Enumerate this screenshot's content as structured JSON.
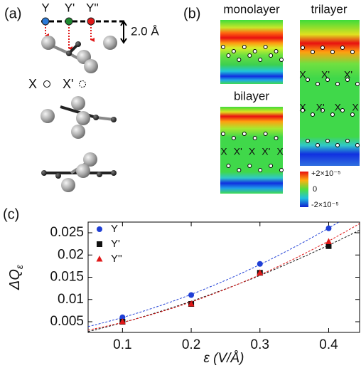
{
  "panel_a": {
    "label": "(a)",
    "sites": [
      "Y",
      "Y'",
      "Y''"
    ],
    "height_label": "2.0 Å",
    "legend": [
      "X",
      "X'"
    ]
  },
  "panel_b": {
    "label": "(b)",
    "maps": [
      {
        "title": "monolayer",
        "x_rows": []
      },
      {
        "title": "bilayer",
        "x_rows": [
          [
            "X",
            "X'",
            "X",
            "X'",
            "X"
          ]
        ]
      },
      {
        "title": "trilayer",
        "x_rows": [
          [
            "X",
            "X'",
            "X'"
          ],
          [
            "X",
            "X'",
            "X",
            "X"
          ]
        ]
      }
    ],
    "colorbar_labels": [
      "+2×10⁻⁵",
      "0",
      "-2×10⁻⁵"
    ]
  },
  "chart_data": {
    "type": "scatter",
    "panel_label": "(c)",
    "xlabel": "ε (V/Å)",
    "ylabel": "ΔQ",
    "ylabel_sub": "ε",
    "x": [
      0.1,
      0.2,
      0.3,
      0.4
    ],
    "series": [
      {
        "name": "Y",
        "color": "#1f3fd6",
        "marker": "circle",
        "values": [
          0.006,
          0.011,
          0.018,
          0.026
        ]
      },
      {
        "name": "Y'",
        "color": "#111111",
        "marker": "square",
        "values": [
          0.005,
          0.009,
          0.016,
          0.022
        ]
      },
      {
        "name": "Y''",
        "color": "#e01818",
        "marker": "triangle",
        "values": [
          0.005,
          0.009,
          0.016,
          0.023
        ]
      }
    ],
    "fit": "quadratic",
    "xlim": [
      0.05,
      0.445
    ],
    "ylim": [
      0.0026,
      0.0274
    ],
    "xticks": [
      0.1,
      0.2,
      0.3,
      0.4
    ],
    "yticks": [
      0.005,
      0.01,
      0.015,
      0.02,
      0.025
    ],
    "legend": "upper left"
  }
}
